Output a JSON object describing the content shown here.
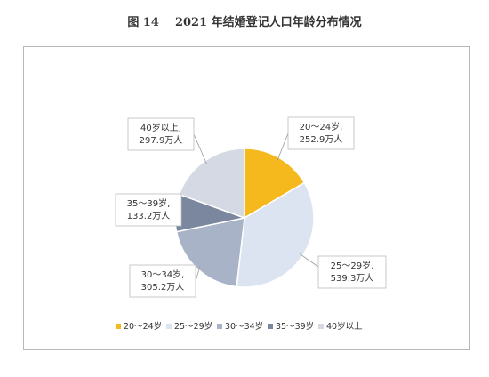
{
  "figure": {
    "number": "图 14",
    "title": "2021 年结婚登记人口年龄分布情况"
  },
  "chart_data": {
    "type": "pie",
    "title": "2021 年结婚登记人口年龄分布情况",
    "unit": "万人",
    "slices": [
      {
        "label": "20～24岁",
        "value": 252.9,
        "value_text": "252.9万人",
        "color": "#f5b81d"
      },
      {
        "label": "25～29岁",
        "value": 539.3,
        "value_text": "539.3万人",
        "color": "#dbe4f0"
      },
      {
        "label": "30～34岁",
        "value": 305.2,
        "value_text": "305.2万人",
        "color": "#a8b3c7"
      },
      {
        "label": "35～39岁",
        "value": 133.2,
        "value_text": "133.2万人",
        "color": "#7a879e"
      },
      {
        "label": "40岁以上",
        "value": 297.9,
        "value_text": "297.9万人",
        "color": "#d4d9e3"
      }
    ],
    "legend": {
      "position": "bottom"
    },
    "data_labels": [
      {
        "line1": "20～24岁,",
        "line2": "252.9万人"
      },
      {
        "line1": "25～29岁,",
        "line2": "539.3万人"
      },
      {
        "line1": "30～34岁,",
        "line2": "305.2万人"
      },
      {
        "line1": "35～39岁,",
        "line2": "133.2万人"
      },
      {
        "line1": "40岁以上,",
        "line2": "297.9万人"
      }
    ]
  }
}
